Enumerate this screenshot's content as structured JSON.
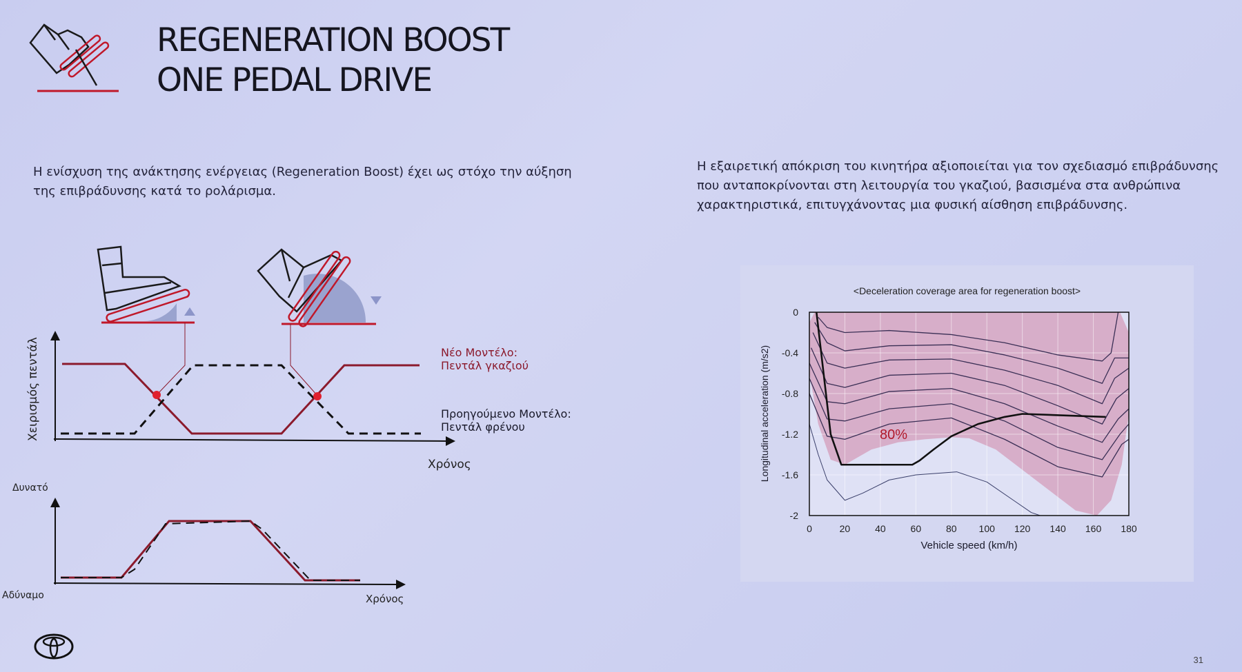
{
  "header": {
    "title_line1": "REGENERATION BOOST",
    "title_line2": "ONE PEDAL DRIVE",
    "icon": "foot-on-pedal-icon"
  },
  "left": {
    "paragraph": "Η ενίσχυση της ανάκτησης ενέργειας (Regeneration Boost) έχει ως στόχο την αύξηση της επιβράδυνσης κατά το ρολάρισμα.",
    "diagram1": {
      "y_label": "Χειρισμός πεντάλ",
      "x_label": "Χρόνος",
      "new_model_line1": "Νέο Μοντέλο:",
      "new_model_line2": "Πεντάλ γκαζιού",
      "prev_model_line1": "Προηγούμενο Μοντέλο:",
      "prev_model_line2": "Πεντάλ φρένου"
    },
    "diagram2": {
      "y_top_label": "Δυνατό",
      "y_bottom_label": "Αδύναμο",
      "x_label": "Χρόνος"
    }
  },
  "right": {
    "paragraph": "Η εξαιρετική απόκριση του κινητήρα αξιοποιείται για τον σχεδιασμό επιβράδυνσης που ανταποκρίνονται στη λειτουργία του γκαζιού, βασισμένα στα ανθρώπινα χαρακτηριστικά, επιτυγχάνοντας μια φυσική αίσθηση επιβράδυνσης."
  },
  "footer": {
    "logo": "toyota-logo",
    "page_number": "31"
  },
  "colors": {
    "accent_red": "#c0182a",
    "dark_red": "#8b1a2c",
    "shade": "#d6a9c4"
  },
  "chart_data": {
    "type": "line",
    "title": "<Deceleration coverage area for regeneration boost>",
    "xlabel": "Vehicle speed (km/h)",
    "ylabel": "Longitudinal acceleration (m/s2)",
    "xlim": [
      0,
      180
    ],
    "ylim": [
      -2,
      0
    ],
    "xticks": [
      0,
      20,
      40,
      60,
      80,
      100,
      120,
      140,
      160,
      180
    ],
    "yticks": [
      0,
      -0.4,
      -0.8,
      -1.2,
      -1.6,
      -2
    ],
    "grid": true,
    "annotation": "80%",
    "shaded_area_80pct": [
      [
        3,
        0
      ],
      [
        175,
        0
      ],
      [
        180,
        -0.2
      ],
      [
        180,
        -1.0
      ],
      [
        176,
        -1.5
      ],
      [
        170,
        -1.85
      ],
      [
        162,
        -2.0
      ],
      [
        150,
        -1.95
      ],
      [
        135,
        -1.75
      ],
      [
        120,
        -1.55
      ],
      [
        105,
        -1.35
      ],
      [
        90,
        -1.24
      ],
      [
        80,
        -1.23
      ],
      [
        65,
        -1.25
      ],
      [
        50,
        -1.28
      ],
      [
        35,
        -1.35
      ],
      [
        20,
        -1.5
      ],
      [
        12,
        -1.45
      ],
      [
        5,
        -1.1
      ],
      [
        0,
        -0.6
      ],
      [
        0,
        -0.1
      ]
    ],
    "regeneration_boost_line": [
      [
        4,
        0
      ],
      [
        12,
        -1.2
      ],
      [
        18,
        -1.5
      ],
      [
        58,
        -1.5
      ],
      [
        62,
        -1.46
      ],
      [
        70,
        -1.35
      ],
      [
        80,
        -1.22
      ],
      [
        95,
        -1.1
      ],
      [
        110,
        -1.03
      ],
      [
        120,
        -1.0
      ],
      [
        167,
        -1.03
      ]
    ],
    "contour_lines": [
      [
        [
          5,
          -0.05
        ],
        [
          10,
          -0.15
        ],
        [
          20,
          -0.2
        ],
        [
          45,
          -0.18
        ],
        [
          80,
          -0.22
        ],
        [
          110,
          -0.3
        ],
        [
          140,
          -0.42
        ],
        [
          165,
          -0.48
        ],
        [
          170,
          -0.4
        ],
        [
          174,
          0
        ]
      ],
      [
        [
          3,
          -0.1
        ],
        [
          10,
          -0.3
        ],
        [
          20,
          -0.38
        ],
        [
          45,
          -0.33
        ],
        [
          80,
          -0.32
        ],
        [
          110,
          -0.42
        ],
        [
          140,
          -0.55
        ],
        [
          165,
          -0.7
        ],
        [
          172,
          -0.45
        ],
        [
          180,
          -0.45
        ]
      ],
      [
        [
          2,
          -0.2
        ],
        [
          10,
          -0.5
        ],
        [
          20,
          -0.55
        ],
        [
          45,
          -0.47
        ],
        [
          80,
          -0.46
        ],
        [
          110,
          -0.57
        ],
        [
          140,
          -0.72
        ],
        [
          165,
          -0.9
        ],
        [
          172,
          -0.65
        ],
        [
          180,
          -0.55
        ]
      ],
      [
        [
          1,
          -0.35
        ],
        [
          10,
          -0.7
        ],
        [
          20,
          -0.74
        ],
        [
          45,
          -0.62
        ],
        [
          80,
          -0.6
        ],
        [
          110,
          -0.72
        ],
        [
          140,
          -0.92
        ],
        [
          165,
          -1.1
        ],
        [
          173,
          -0.85
        ],
        [
          180,
          -0.75
        ]
      ],
      [
        [
          0,
          -0.5
        ],
        [
          10,
          -0.88
        ],
        [
          20,
          -0.9
        ],
        [
          45,
          -0.78
        ],
        [
          80,
          -0.75
        ],
        [
          110,
          -0.9
        ],
        [
          140,
          -1.12
        ],
        [
          165,
          -1.28
        ],
        [
          174,
          -1.05
        ],
        [
          180,
          -0.95
        ]
      ],
      [
        [
          0,
          -0.65
        ],
        [
          10,
          -1.05
        ],
        [
          20,
          -1.07
        ],
        [
          45,
          -0.95
        ],
        [
          80,
          -0.9
        ],
        [
          110,
          -1.07
        ],
        [
          140,
          -1.33
        ],
        [
          165,
          -1.45
        ],
        [
          175,
          -1.2
        ],
        [
          180,
          -1.1
        ]
      ],
      [
        [
          0,
          -0.8
        ],
        [
          10,
          -1.22
        ],
        [
          20,
          -1.25
        ],
        [
          45,
          -1.1
        ],
        [
          80,
          -1.04
        ],
        [
          110,
          -1.25
        ],
        [
          140,
          -1.52
        ],
        [
          165,
          -1.62
        ],
        [
          176,
          -1.3
        ],
        [
          180,
          -1.25
        ]
      ]
    ],
    "outer_thin_line": [
      [
        0,
        -1.1
      ],
      [
        5,
        -1.4
      ],
      [
        10,
        -1.65
      ],
      [
        20,
        -1.85
      ],
      [
        30,
        -1.78
      ],
      [
        45,
        -1.65
      ],
      [
        60,
        -1.6
      ],
      [
        83,
        -1.57
      ],
      [
        100,
        -1.67
      ],
      [
        115,
        -1.85
      ],
      [
        125,
        -1.97
      ],
      [
        130,
        -2.0
      ]
    ]
  }
}
